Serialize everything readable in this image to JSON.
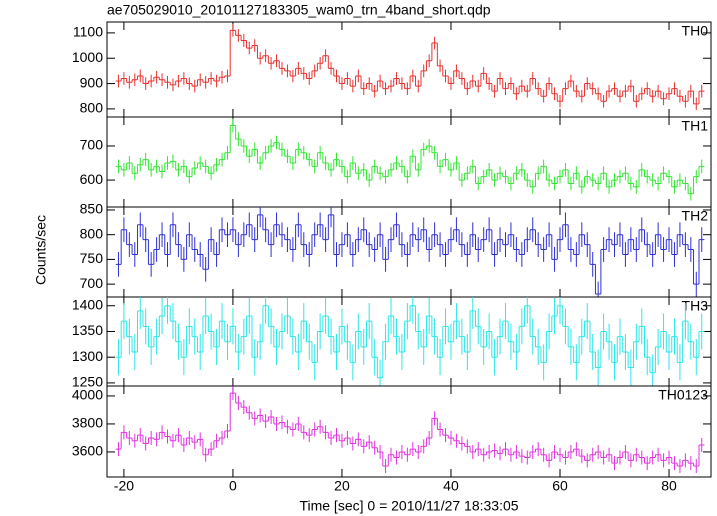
{
  "chart_data": {
    "type": "step",
    "title": "ae705029010_20101127183305_wam0_trn_4band_short.qdp",
    "xlabel": "Time [sec] 0 = 2010/11/27 18:33:05",
    "ylabel": "Counts/sec",
    "xlim": [
      -23.1,
      87.7
    ],
    "xticks": [
      -20,
      0,
      20,
      40,
      60,
      80
    ],
    "x": [
      -21,
      -20,
      -19,
      -18,
      -17,
      -16,
      -15,
      -14,
      -13,
      -12,
      -11,
      -10,
      -9,
      -8,
      -7,
      -6,
      -5,
      -4,
      -3,
      -2,
      -1,
      0,
      1,
      2,
      3,
      4,
      5,
      6,
      7,
      8,
      9,
      10,
      11,
      12,
      13,
      14,
      15,
      16,
      17,
      18,
      19,
      20,
      21,
      22,
      23,
      24,
      25,
      26,
      27,
      28,
      29,
      30,
      31,
      32,
      33,
      34,
      35,
      36,
      37,
      38,
      39,
      40,
      41,
      42,
      43,
      44,
      45,
      46,
      47,
      48,
      49,
      50,
      51,
      52,
      53,
      54,
      55,
      56,
      57,
      58,
      59,
      60,
      61,
      62,
      63,
      64,
      65,
      66,
      67,
      68,
      69,
      70,
      71,
      72,
      73,
      74,
      75,
      76,
      77,
      78,
      79,
      80,
      81,
      82,
      83,
      84,
      85,
      86
    ],
    "series": [
      {
        "name": "TH0",
        "color": "#e8312f",
        "error": 25,
        "ylim": [
          768,
          1143
        ],
        "yticks": [
          800,
          900,
          1000,
          1100
        ],
        "values": [
          910,
          920,
          905,
          915,
          930,
          900,
          910,
          925,
          915,
          905,
          895,
          910,
          920,
          900,
          890,
          915,
          905,
          920,
          910,
          925,
          930,
          1110,
          1090,
          1070,
          1040,
          1050,
          1000,
          1010,
          980,
          990,
          960,
          950,
          930,
          960,
          940,
          920,
          950,
          980,
          1010,
          960,
          930,
          900,
          920,
          890,
          930,
          880,
          900,
          870,
          910,
          880,
          890,
          920,
          900,
          880,
          930,
          890,
          950,
          990,
          1060,
          970,
          930,
          900,
          950,
          920,
          880,
          910,
          890,
          940,
          900,
          870,
          920,
          880,
          900,
          860,
          890,
          870,
          920,
          880,
          850,
          900,
          860,
          830,
          880,
          910,
          870,
          850,
          900,
          880,
          860,
          830,
          870,
          880,
          850,
          870,
          890,
          830,
          860,
          880,
          850,
          870,
          840,
          860,
          880,
          850,
          830,
          870,
          820,
          870
        ]
      },
      {
        "name": "TH1",
        "color": "#33e533",
        "error": 20,
        "ylim": [
          521,
          785
        ],
        "yticks": [
          600,
          700
        ],
        "values": [
          640,
          630,
          650,
          620,
          645,
          660,
          630,
          640,
          625,
          650,
          655,
          630,
          640,
          610,
          635,
          650,
          640,
          620,
          645,
          660,
          680,
          760,
          720,
          700,
          670,
          690,
          650,
          680,
          700,
          710,
          690,
          670,
          650,
          690,
          680,
          660,
          640,
          680,
          650,
          630,
          660,
          640,
          610,
          650,
          620,
          630,
          600,
          640,
          620,
          610,
          630,
          650,
          640,
          610,
          670,
          630,
          690,
          700,
          680,
          640,
          660,
          630,
          650,
          600,
          620,
          640,
          590,
          610,
          630,
          600,
          620,
          610,
          590,
          620,
          630,
          600,
          580,
          620,
          640,
          600,
          590,
          610,
          630,
          590,
          620,
          580,
          610,
          600,
          590,
          620,
          580,
          600,
          610,
          620,
          590,
          580,
          630,
          610,
          600,
          590,
          620,
          610,
          580,
          600,
          590,
          560,
          610,
          640
        ]
      },
      {
        "name": "TH2",
        "color": "#2f2fd6",
        "error": 25,
        "ylim": [
          674,
          856
        ],
        "yticks": [
          700,
          750,
          800,
          850
        ],
        "values": [
          740,
          810,
          780,
          760,
          820,
          790,
          740,
          770,
          800,
          760,
          820,
          780,
          750,
          800,
          770,
          760,
          730,
          790,
          760,
          810,
          800,
          810,
          780,
          800,
          820,
          790,
          840,
          810,
          780,
          820,
          800,
          790,
          770,
          820,
          780,
          760,
          800,
          820,
          790,
          840,
          760,
          780,
          800,
          760,
          790,
          810,
          780,
          770,
          800,
          750,
          790,
          820,
          780,
          760,
          800,
          790,
          810,
          770,
          800,
          780,
          760,
          790,
          810,
          780,
          760,
          800,
          770,
          790,
          810,
          760,
          790,
          780,
          800,
          770,
          760,
          790,
          810,
          780,
          770,
          800,
          750,
          790,
          820,
          770,
          760,
          800,
          780,
          740,
          680,
          770,
          790,
          780,
          800,
          760,
          790,
          770,
          810,
          780,
          760,
          800,
          770,
          790,
          760,
          800,
          780,
          770,
          700,
          790
        ]
      },
      {
        "name": "TH3",
        "color": "#2ee6e6",
        "error": 35,
        "ylim": [
          1244,
          1417
        ],
        "yticks": [
          1250,
          1300,
          1350,
          1400
        ],
        "values": [
          1300,
          1370,
          1340,
          1310,
          1390,
          1360,
          1320,
          1340,
          1380,
          1400,
          1370,
          1330,
          1300,
          1360,
          1340,
          1310,
          1380,
          1350,
          1320,
          1370,
          1330,
          1360,
          1310,
          1340,
          1380,
          1300,
          1330,
          1400,
          1360,
          1320,
          1350,
          1380,
          1340,
          1310,
          1370,
          1330,
          1290,
          1350,
          1380,
          1340,
          1310,
          1360,
          1330,
          1290,
          1350,
          1320,
          1370,
          1300,
          1260,
          1330,
          1380,
          1340,
          1310,
          1370,
          1400,
          1350,
          1320,
          1380,
          1340,
          1300,
          1360,
          1330,
          1370,
          1340,
          1310,
          1390,
          1360,
          1320,
          1350,
          1300,
          1340,
          1370,
          1330,
          1310,
          1360,
          1400,
          1340,
          1320,
          1290,
          1350,
          1380,
          1400,
          1360,
          1320,
          1290,
          1340,
          1370,
          1310,
          1280,
          1350,
          1330,
          1290,
          1340,
          1310,
          1280,
          1330,
          1360,
          1300,
          1270,
          1320,
          1350,
          1310,
          1340,
          1290,
          1370,
          1330,
          1300,
          1350
        ]
      },
      {
        "name": "TH0123",
        "color": "#e033e0",
        "error": 50,
        "ylim": [
          3421,
          4071
        ],
        "yticks": [
          3600,
          3800,
          4000
        ],
        "values": [
          3620,
          3740,
          3700,
          3680,
          3720,
          3660,
          3700,
          3690,
          3740,
          3710,
          3680,
          3720,
          3650,
          3700,
          3670,
          3690,
          3580,
          3620,
          3680,
          3700,
          3750,
          4020,
          3950,
          3920,
          3880,
          3840,
          3860,
          3820,
          3850,
          3800,
          3810,
          3780,
          3760,
          3800,
          3740,
          3720,
          3760,
          3780,
          3740,
          3700,
          3720,
          3680,
          3700,
          3660,
          3690,
          3640,
          3670,
          3630,
          3600,
          3500,
          3580,
          3560,
          3600,
          3580,
          3620,
          3600,
          3640,
          3700,
          3840,
          3760,
          3720,
          3700,
          3680,
          3660,
          3640,
          3600,
          3620,
          3580,
          3600,
          3610,
          3590,
          3620,
          3580,
          3600,
          3570,
          3560,
          3600,
          3620,
          3580,
          3540,
          3600,
          3580,
          3560,
          3600,
          3620,
          3570,
          3540,
          3580,
          3600,
          3560,
          3580,
          3520,
          3560,
          3600,
          3540,
          3580,
          3560,
          3520,
          3560,
          3580,
          3540,
          3560,
          3520,
          3500,
          3540,
          3520,
          3500,
          3650
        ]
      }
    ]
  }
}
